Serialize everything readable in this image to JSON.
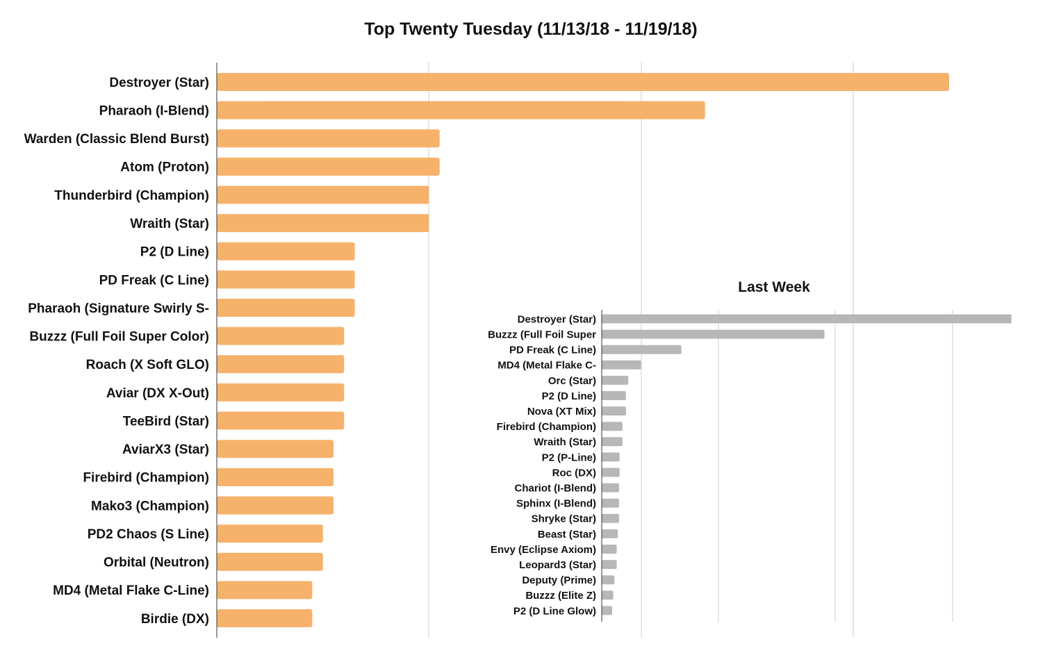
{
  "chart_data": [
    {
      "type": "bar",
      "orientation": "horizontal",
      "title": "Top Twenty Tuesday (11/13/18 - 11/19/18)",
      "categories": [
        "Destroyer (Star)",
        "Pharaoh (I-Blend)",
        "Warden (Classic Blend Burst)",
        "Atom (Proton)",
        "Thunderbird (Champion)",
        "Wraith (Star)",
        "P2 (D Line)",
        "PD Freak (C Line)",
        "Pharaoh (Signature Swirly S-",
        "Buzzz (Full Foil Super Color)",
        "Roach (X Soft GLO)",
        "Aviar (DX X-Out)",
        "TeeBird (Star)",
        "AviarX3 (Star)",
        "Firebird (Champion)",
        "Mako3 (Champion)",
        "PD2 Chaos (S Line)",
        "Orbital (Neutron)",
        "MD4 (Metal Flake C-Line)",
        "Birdie (DX)"
      ],
      "values": [
        69,
        46,
        21,
        21,
        20,
        20,
        13,
        13,
        13,
        12,
        12,
        12,
        12,
        11,
        11,
        11,
        10,
        10,
        9,
        9
      ],
      "xlim": [
        0,
        80
      ],
      "grid": true,
      "bar_color": "#f6b26b"
    },
    {
      "type": "bar",
      "orientation": "horizontal",
      "title": "Last Week",
      "categories": [
        "Destroyer (Star)",
        "Buzzz (Full Foil Super",
        "PD Freak (C Line)",
        "MD4 (Metal Flake C-",
        "Orc (Star)",
        "P2 (D Line)",
        "Nova (XT Mix)",
        "Firebird (Champion)",
        "Wraith (Star)",
        "P2 (P-Line)",
        "Roc (DX)",
        "Chariot (I-Blend)",
        "Sphinx (I-Blend)",
        "Shryke (Star)",
        "Beast (Star)",
        "Envy (Eclipse Axiom)",
        "Leopard3 (Star)",
        "Deputy (Prime)",
        "Buzzz (Elite Z)",
        "P2 (D Line Glow)"
      ],
      "values": [
        71,
        38.6,
        13.8,
        6.8,
        4.6,
        4.2,
        4.2,
        3.6,
        3.6,
        3.1,
        3.1,
        3.0,
        3.0,
        3.0,
        2.8,
        2.6,
        2.6,
        2.2,
        2.0,
        1.8
      ],
      "xlim": [
        0,
        72
      ],
      "grid": true,
      "bar_color": "#b7b7b7"
    }
  ]
}
